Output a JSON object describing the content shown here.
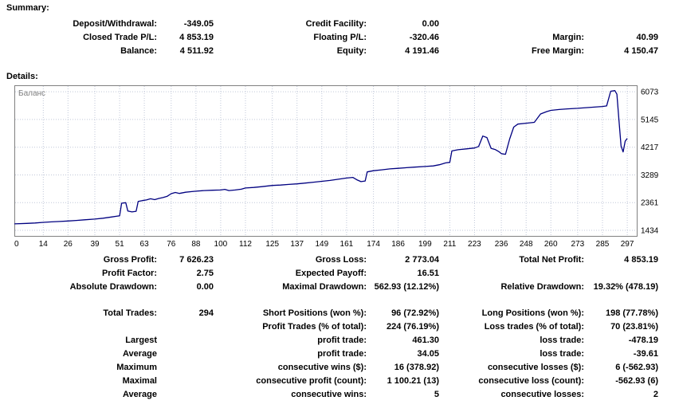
{
  "summary": {
    "heading": "Summary:",
    "deposit_withdrawal": {
      "label": "Deposit/Withdrawal:",
      "value": "-349.05"
    },
    "credit_facility": {
      "label": "Credit Facility:",
      "value": "0.00"
    },
    "closed_trade_pl": {
      "label": "Closed Trade P/L:",
      "value": "4 853.19"
    },
    "floating_pl": {
      "label": "Floating P/L:",
      "value": "-320.46"
    },
    "margin": {
      "label": "Margin:",
      "value": "40.99"
    },
    "balance": {
      "label": "Balance:",
      "value": "4 511.92"
    },
    "equity": {
      "label": "Equity:",
      "value": "4 191.46"
    },
    "free_margin": {
      "label": "Free Margin:",
      "value": "4 150.47"
    }
  },
  "details": {
    "heading": "Details:"
  },
  "chart_data": {
    "type": "line",
    "title": "Баланс",
    "legend_position": "top-left-inside",
    "grid": true,
    "xlim": [
      0,
      302
    ],
    "ylim": [
      1220,
      6290
    ],
    "x_ticks": [
      0,
      14,
      26,
      39,
      51,
      63,
      76,
      88,
      100,
      112,
      125,
      137,
      149,
      161,
      174,
      186,
      199,
      211,
      223,
      236,
      248,
      260,
      273,
      285,
      297
    ],
    "y_ticks": [
      1434,
      2361,
      3289,
      4217,
      5145,
      6073
    ],
    "line_color": "#000080",
    "grid_color": "#c0c7d8",
    "frame_color": "#808080",
    "legend_color": "#808080",
    "series": [
      {
        "name": "Баланс",
        "points": [
          [
            0,
            1650
          ],
          [
            6,
            1665
          ],
          [
            10,
            1680
          ],
          [
            14,
            1700
          ],
          [
            18,
            1715
          ],
          [
            22,
            1730
          ],
          [
            26,
            1745
          ],
          [
            30,
            1765
          ],
          [
            34,
            1785
          ],
          [
            39,
            1810
          ],
          [
            43,
            1840
          ],
          [
            47,
            1880
          ],
          [
            50,
            1910
          ],
          [
            51,
            1920
          ],
          [
            52,
            2340
          ],
          [
            54,
            2360
          ],
          [
            55,
            2080
          ],
          [
            57,
            2050
          ],
          [
            59,
            2070
          ],
          [
            60,
            2400
          ],
          [
            62,
            2430
          ],
          [
            64,
            2450
          ],
          [
            66,
            2490
          ],
          [
            68,
            2460
          ],
          [
            70,
            2500
          ],
          [
            72,
            2530
          ],
          [
            74,
            2570
          ],
          [
            76,
            2660
          ],
          [
            78,
            2700
          ],
          [
            80,
            2670
          ],
          [
            83,
            2710
          ],
          [
            86,
            2730
          ],
          [
            88,
            2745
          ],
          [
            92,
            2765
          ],
          [
            96,
            2775
          ],
          [
            100,
            2785
          ],
          [
            102,
            2805
          ],
          [
            104,
            2765
          ],
          [
            107,
            2785
          ],
          [
            110,
            2810
          ],
          [
            112,
            2850
          ],
          [
            116,
            2870
          ],
          [
            120,
            2895
          ],
          [
            125,
            2935
          ],
          [
            129,
            2950
          ],
          [
            133,
            2970
          ],
          [
            137,
            2990
          ],
          [
            141,
            3015
          ],
          [
            145,
            3045
          ],
          [
            149,
            3075
          ],
          [
            153,
            3105
          ],
          [
            157,
            3145
          ],
          [
            161,
            3185
          ],
          [
            164,
            3205
          ],
          [
            166,
            3125
          ],
          [
            168,
            3065
          ],
          [
            170,
            3085
          ],
          [
            171,
            3390
          ],
          [
            174,
            3430
          ],
          [
            178,
            3460
          ],
          [
            182,
            3490
          ],
          [
            186,
            3510
          ],
          [
            190,
            3530
          ],
          [
            194,
            3550
          ],
          [
            199,
            3570
          ],
          [
            203,
            3590
          ],
          [
            206,
            3630
          ],
          [
            209,
            3690
          ],
          [
            211,
            3710
          ],
          [
            212,
            4090
          ],
          [
            215,
            4130
          ],
          [
            219,
            4160
          ],
          [
            223,
            4190
          ],
          [
            225,
            4240
          ],
          [
            227,
            4590
          ],
          [
            229,
            4540
          ],
          [
            231,
            4180
          ],
          [
            233,
            4140
          ],
          [
            235,
            4060
          ],
          [
            236,
            4000
          ],
          [
            238,
            3980
          ],
          [
            240,
            4490
          ],
          [
            242,
            4890
          ],
          [
            244,
            4990
          ],
          [
            248,
            5020
          ],
          [
            252,
            5050
          ],
          [
            255,
            5330
          ],
          [
            258,
            5410
          ],
          [
            260,
            5450
          ],
          [
            264,
            5480
          ],
          [
            268,
            5500
          ],
          [
            273,
            5520
          ],
          [
            277,
            5540
          ],
          [
            281,
            5560
          ],
          [
            285,
            5580
          ],
          [
            287,
            5600
          ],
          [
            289,
            6090
          ],
          [
            291,
            6110
          ],
          [
            292,
            5990
          ],
          [
            293,
            5110
          ],
          [
            294,
            4260
          ],
          [
            295,
            4060
          ],
          [
            296,
            4420
          ],
          [
            297,
            4510
          ]
        ]
      }
    ]
  },
  "stats": {
    "gross_profit": {
      "label": "Gross Profit:",
      "value": "7 626.23"
    },
    "gross_loss": {
      "label": "Gross Loss:",
      "value": "2 773.04"
    },
    "total_net_profit": {
      "label": "Total Net Profit:",
      "value": "4 853.19"
    },
    "profit_factor": {
      "label": "Profit Factor:",
      "value": "2.75"
    },
    "expected_payoff": {
      "label": "Expected Payoff:",
      "value": "16.51"
    },
    "absolute_drawdown": {
      "label": "Absolute Drawdown:",
      "value": "0.00"
    },
    "maximal_drawdown": {
      "label": "Maximal Drawdown:",
      "value": "562.93 (12.12%)"
    },
    "relative_drawdown": {
      "label": "Relative Drawdown:",
      "value": "19.32% (478.19)"
    },
    "total_trades": {
      "label": "Total Trades:",
      "value": "294"
    },
    "short_positions": {
      "label": "Short Positions (won %):",
      "value": "96 (72.92%)"
    },
    "long_positions": {
      "label": "Long Positions (won %):",
      "value": "198 (77.78%)"
    },
    "profit_trades": {
      "label": "Profit Trades (% of total):",
      "value": "224 (76.19%)"
    },
    "loss_trades": {
      "label": "Loss trades (% of total):",
      "value": "70 (23.81%)"
    },
    "largest": {
      "row_label": "Largest",
      "profit": {
        "label": "profit trade:",
        "value": "461.30"
      },
      "loss": {
        "label": "loss trade:",
        "value": "-478.19"
      }
    },
    "average": {
      "row_label": "Average",
      "profit": {
        "label": "profit trade:",
        "value": "34.05"
      },
      "loss": {
        "label": "loss trade:",
        "value": "-39.61"
      }
    },
    "maximum": {
      "row_label": "Maximum",
      "wins": {
        "label": "consecutive wins ($):",
        "value": "16 (378.92)"
      },
      "losses": {
        "label": "consecutive losses ($):",
        "value": "6 (-562.93)"
      }
    },
    "maximal": {
      "row_label": "Maximal",
      "profit": {
        "label": "consecutive profit (count):",
        "value": "1 100.21 (13)"
      },
      "loss": {
        "label": "consecutive loss (count):",
        "value": "-562.93 (6)"
      }
    },
    "average_consecutive": {
      "row_label": "Average",
      "wins": {
        "label": "consecutive wins:",
        "value": "5"
      },
      "losses": {
        "label": "consecutive losses:",
        "value": "2"
      }
    }
  }
}
